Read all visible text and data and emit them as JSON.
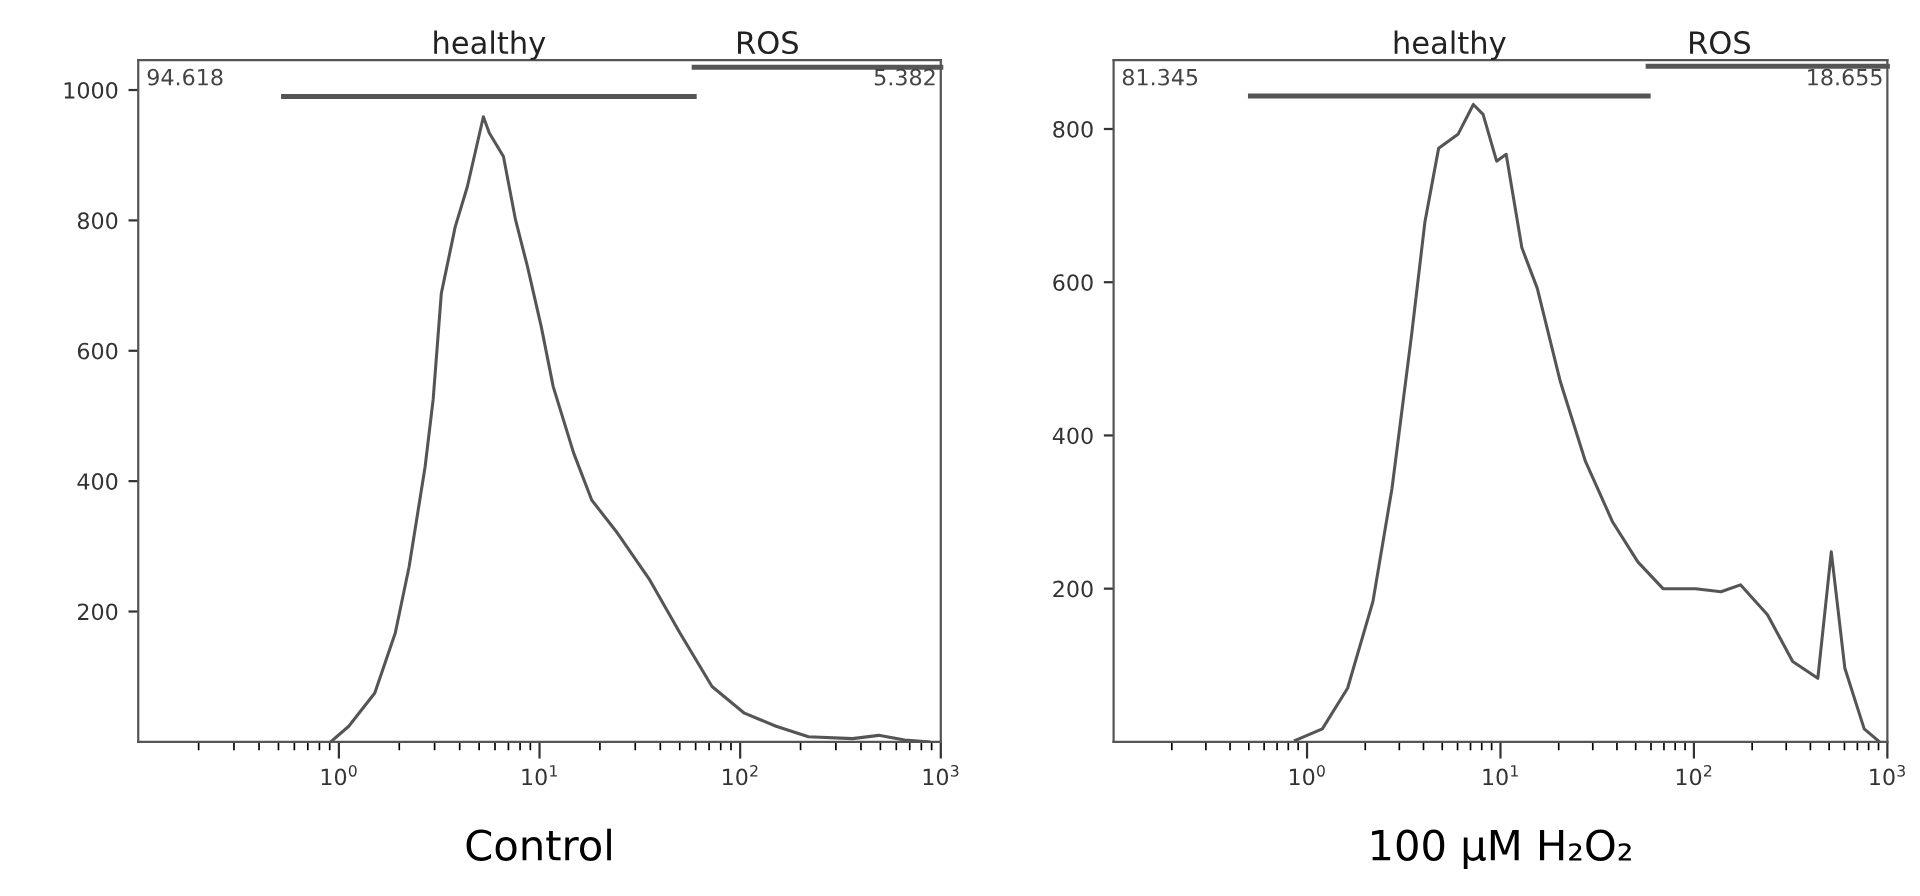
{
  "chart_data": [
    {
      "type": "line",
      "xlabel": "Control",
      "log": "x",
      "xlim": [
        0.1,
        1000
      ],
      "ylim": [
        0,
        1046
      ],
      "xticks": [
        {
          "value": 1,
          "label": "10$^{0}$"
        },
        {
          "value": 10,
          "label": "10$^{1}$"
        },
        {
          "value": 100,
          "label": "10$^{2}$"
        },
        {
          "value": 1000,
          "label": "10$^{3}$"
        }
      ],
      "yticks": [
        200,
        400,
        600,
        800,
        1000
      ],
      "grid": false,
      "legend": false,
      "series": [
        {
          "color": "#555555",
          "x": [
            0.91,
            1.12,
            1.51,
            1.91,
            2.24,
            2.69,
            2.95,
            3.24,
            3.8,
            4.37,
            5.25,
            5.62,
            6.61,
            7.59,
            8.71,
            10.2,
            11.7,
            14.8,
            18.2,
            24.5,
            35.5,
            50.1,
            72.4,
            105,
            151,
            219,
            363,
            490,
            661,
            871
          ],
          "values": [
            0,
            24,
            75,
            167,
            269,
            422,
            525,
            688,
            790,
            852,
            959,
            934,
            898,
            801,
            729,
            637,
            545,
            443,
            371,
            320,
            248,
            167,
            85,
            44,
            24,
            8,
            5,
            10,
            3,
            0
          ]
        },
        {
          "name": "healthy",
          "color": "#555555",
          "x": [
            0.53,
            59
          ],
          "values": [
            990,
            990
          ]
        },
        {
          "name": "ROS",
          "color": "#555555",
          "x": [
            59,
            1000
          ],
          "values": [
            1035,
            1035
          ]
        }
      ],
      "annotations": [
        "94.618",
        "5.382"
      ]
    },
    {
      "type": "line",
      "xlabel": "100 μM H₂O₂",
      "log": "x",
      "xlim": [
        0.1,
        1000
      ],
      "ylim": [
        0,
        890
      ],
      "xticks": [
        {
          "value": 1,
          "label": "10$^{0}$"
        },
        {
          "value": 10,
          "label": "10$^{1}$"
        },
        {
          "value": 100,
          "label": "10$^{2}$"
        },
        {
          "value": 1000,
          "label": "10$^{3}$"
        }
      ],
      "yticks": [
        200,
        400,
        600,
        800
      ],
      "grid": false,
      "legend": false,
      "series": [
        {
          "color": "#555555",
          "x": [
            0.87,
            1.2,
            1.62,
            2.19,
            2.75,
            3.47,
            4.07,
            4.79,
            6.03,
            7.24,
            8.13,
            9.55,
            10.7,
            12.9,
            15.5,
            20.4,
            27.5,
            38.0,
            51.3,
            69.2,
            102,
            138,
            174,
            240,
            324,
            437,
            513,
            603,
            759,
            912
          ],
          "values": [
            2,
            17,
            70,
            183,
            331,
            531,
            679,
            775,
            793,
            832,
            819,
            758,
            767,
            645,
            592,
            470,
            366,
            287,
            235,
            200,
            200,
            196,
            205,
            166,
            105,
            83,
            248,
            96,
            17,
            0
          ]
        },
        {
          "name": "healthy",
          "color": "#555555",
          "x": [
            0.51,
            58
          ],
          "values": [
            843,
            843
          ]
        },
        {
          "name": "ROS",
          "color": "#555555",
          "x": [
            58,
            1000
          ],
          "values": [
            882,
            882
          ]
        }
      ],
      "annotations": [
        "81.345",
        "18.655"
      ]
    }
  ]
}
